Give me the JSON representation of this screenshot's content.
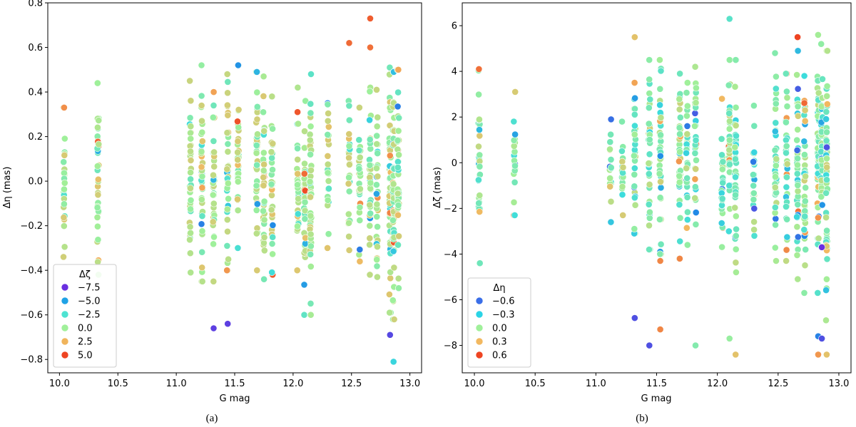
{
  "chart_data": [
    {
      "type": "scatter",
      "caption": "(a)",
      "xlabel": "G mag",
      "ylabel": "Δη (mas)",
      "xlim": [
        9.9,
        13.1
      ],
      "ylim": [
        -0.86,
        0.8
      ],
      "xticks": [
        10.0,
        10.5,
        11.0,
        11.5,
        12.0,
        12.5,
        13.0
      ],
      "xtick_labels": [
        "10.0",
        "10.5",
        "11.0",
        "11.5",
        "12.0",
        "12.5",
        "13.0"
      ],
      "yticks": [
        -0.8,
        -0.6,
        -0.4,
        -0.2,
        0.0,
        0.2,
        0.4,
        0.6,
        0.8
      ],
      "ytick_labels": [
        "−0.8",
        "−0.6",
        "−0.4",
        "−0.2",
        "0.0",
        "0.2",
        "0.4",
        "0.6",
        "0.8"
      ],
      "legend": {
        "title": "Δζ",
        "position": "lower-left",
        "entries": [
          {
            "label": "−7.5",
            "color": "#6a2fe0"
          },
          {
            "label": "−5.0",
            "color": "#1fa2e6"
          },
          {
            "label": "−2.5",
            "color": "#4ee3d2"
          },
          {
            "label": "0.0",
            "color": "#a0f09a"
          },
          {
            "label": "2.5",
            "color": "#f0b45c"
          },
          {
            "label": "5.0",
            "color": "#ee4422"
          }
        ]
      },
      "color_dimension": "Δζ",
      "color_range": [
        -8.4,
        6.4
      ],
      "columns": [
        {
          "x": 10.04,
          "ymin": -0.34,
          "ymax": 0.33
        },
        {
          "x": 10.33,
          "ymin": -0.42,
          "ymax": 0.44
        },
        {
          "x": 11.12,
          "ymin": -0.41,
          "ymax": 0.45
        },
        {
          "x": 11.22,
          "ymin": -0.45,
          "ymax": 0.52
        },
        {
          "x": 11.32,
          "ymin": -0.45,
          "ymax": 0.4
        },
        {
          "x": 11.44,
          "ymin": -0.4,
          "ymax": 0.48
        },
        {
          "x": 11.53,
          "ymin": -0.3,
          "ymax": 0.52
        },
        {
          "x": 11.69,
          "ymin": -0.4,
          "ymax": 0.49
        },
        {
          "x": 11.75,
          "ymin": -0.44,
          "ymax": 0.47
        },
        {
          "x": 11.82,
          "ymin": -0.42,
          "ymax": 0.38
        },
        {
          "x": 12.04,
          "ymin": -0.4,
          "ymax": 0.31
        },
        {
          "x": 12.1,
          "ymin": -0.6,
          "ymax": 0.36
        },
        {
          "x": 12.15,
          "ymin": -0.6,
          "ymax": 0.48
        },
        {
          "x": 12.3,
          "ymin": -0.3,
          "ymax": 0.35
        },
        {
          "x": 12.48,
          "ymin": -0.31,
          "ymax": 0.36
        },
        {
          "x": 12.57,
          "ymin": -0.36,
          "ymax": 0.33
        },
        {
          "x": 12.66,
          "ymin": -0.42,
          "ymax": 0.42
        },
        {
          "x": 12.72,
          "ymin": -0.43,
          "ymax": 0.41
        },
        {
          "x": 12.83,
          "ymin": -0.59,
          "ymax": 0.51
        },
        {
          "x": 12.86,
          "ymin": -0.62,
          "ymax": 0.49
        },
        {
          "x": 12.9,
          "ymin": -0.48,
          "ymax": 0.5
        }
      ],
      "outliers": [
        {
          "x": 11.32,
          "y": -0.66,
          "c": -7.9
        },
        {
          "x": 11.44,
          "y": -0.64,
          "c": -7.9
        },
        {
          "x": 12.66,
          "y": 0.73,
          "c": 5.6
        },
        {
          "x": 12.48,
          "y": 0.62,
          "c": 5.2
        },
        {
          "x": 12.66,
          "y": 0.6,
          "c": 5.0
        },
        {
          "x": 12.83,
          "y": -0.69,
          "c": -7.6
        },
        {
          "x": 12.86,
          "y": -0.81,
          "c": -3.0
        },
        {
          "x": 11.53,
          "y": 0.52,
          "c": -5.2
        },
        {
          "x": 11.69,
          "y": 0.49,
          "c": -4.1
        },
        {
          "x": 12.04,
          "y": 0.42,
          "c": 0.3
        },
        {
          "x": 10.04,
          "y": 0.33,
          "c": 4.0
        }
      ]
    },
    {
      "type": "scatter",
      "caption": "(b)",
      "xlabel": "G mag",
      "ylabel": "Δζ (mas)",
      "xlim": [
        9.9,
        13.1
      ],
      "ylim": [
        -9.2,
        7.0
      ],
      "xticks": [
        10.0,
        10.5,
        11.0,
        11.5,
        12.0,
        12.5,
        13.0
      ],
      "xtick_labels": [
        "10.0",
        "10.5",
        "11.0",
        "11.5",
        "12.0",
        "12.5",
        "13.0"
      ],
      "yticks": [
        -8,
        -6,
        -4,
        -2,
        0,
        2,
        4,
        6
      ],
      "ytick_labels": [
        "−8",
        "−6",
        "−4",
        "−2",
        "0",
        "2",
        "4",
        "6"
      ],
      "legend": {
        "title": "Δη",
        "position": "lower-left",
        "entries": [
          {
            "label": "−0.6",
            "color": "#3a6ee8"
          },
          {
            "label": "−0.3",
            "color": "#2ad4e6"
          },
          {
            "label": "0.0",
            "color": "#a0f09a"
          },
          {
            "label": "0.3",
            "color": "#f2b860"
          },
          {
            "label": "0.6",
            "color": "#ee4422"
          }
        ]
      },
      "color_dimension": "Δη",
      "color_range": [
        -0.7,
        0.7
      ],
      "columns": [
        {
          "x": 10.04,
          "ymin": -4.4,
          "ymax": 4.1
        },
        {
          "x": 10.33,
          "ymin": -2.3,
          "ymax": 3.1
        },
        {
          "x": 11.12,
          "ymin": -2.6,
          "ymax": 1.9
        },
        {
          "x": 11.22,
          "ymin": -2.3,
          "ymax": 1.8
        },
        {
          "x": 11.32,
          "ymin": -3.1,
          "ymax": 3.5
        },
        {
          "x": 11.44,
          "ymin": -3.8,
          "ymax": 4.5
        },
        {
          "x": 11.53,
          "ymin": -4.0,
          "ymax": 4.5
        },
        {
          "x": 11.69,
          "ymin": -4.2,
          "ymax": 3.9
        },
        {
          "x": 11.75,
          "ymin": -3.6,
          "ymax": 3.5
        },
        {
          "x": 11.82,
          "ymin": -2.7,
          "ymax": 4.2
        },
        {
          "x": 12.04,
          "ymin": -3.7,
          "ymax": 2.8
        },
        {
          "x": 12.1,
          "ymin": -3.0,
          "ymax": 4.5
        },
        {
          "x": 12.15,
          "ymin": -4.8,
          "ymax": 4.5
        },
        {
          "x": 12.3,
          "ymin": -3.2,
          "ymax": 2.5
        },
        {
          "x": 12.48,
          "ymin": -4.3,
          "ymax": 4.8
        },
        {
          "x": 12.57,
          "ymin": -4.3,
          "ymax": 3.9
        },
        {
          "x": 12.66,
          "ymin": -5.1,
          "ymax": 4.9
        },
        {
          "x": 12.72,
          "ymin": -5.7,
          "ymax": 3.8
        },
        {
          "x": 12.83,
          "ymin": -5.7,
          "ymax": 5.6
        },
        {
          "x": 12.86,
          "ymin": -3.7,
          "ymax": 5.2
        },
        {
          "x": 12.9,
          "ymin": -6.9,
          "ymax": 4.9
        }
      ],
      "outliers": [
        {
          "x": 12.1,
          "y": 6.3,
          "c": -0.1
        },
        {
          "x": 12.66,
          "y": 5.5,
          "c": 0.7
        },
        {
          "x": 11.32,
          "y": 5.5,
          "c": 0.3
        },
        {
          "x": 11.32,
          "y": -6.8,
          "c": -0.6
        },
        {
          "x": 11.44,
          "y": -8.0,
          "c": -0.6
        },
        {
          "x": 11.53,
          "y": -7.3,
          "c": 0.5
        },
        {
          "x": 11.82,
          "y": -8.0,
          "c": 0.0
        },
        {
          "x": 12.1,
          "y": -7.7,
          "c": 0.05
        },
        {
          "x": 12.15,
          "y": -8.4,
          "c": 0.3
        },
        {
          "x": 12.83,
          "y": -7.6,
          "c": -0.45
        },
        {
          "x": 12.86,
          "y": -7.7,
          "c": -0.6
        },
        {
          "x": 12.83,
          "y": -8.4,
          "c": 0.45
        },
        {
          "x": 12.9,
          "y": -8.4,
          "c": 0.3
        },
        {
          "x": 11.53,
          "y": -4.3,
          "c": 0.5
        },
        {
          "x": 11.69,
          "y": -4.2,
          "c": 0.5
        },
        {
          "x": 12.86,
          "y": -3.7,
          "c": -0.7
        }
      ]
    }
  ]
}
